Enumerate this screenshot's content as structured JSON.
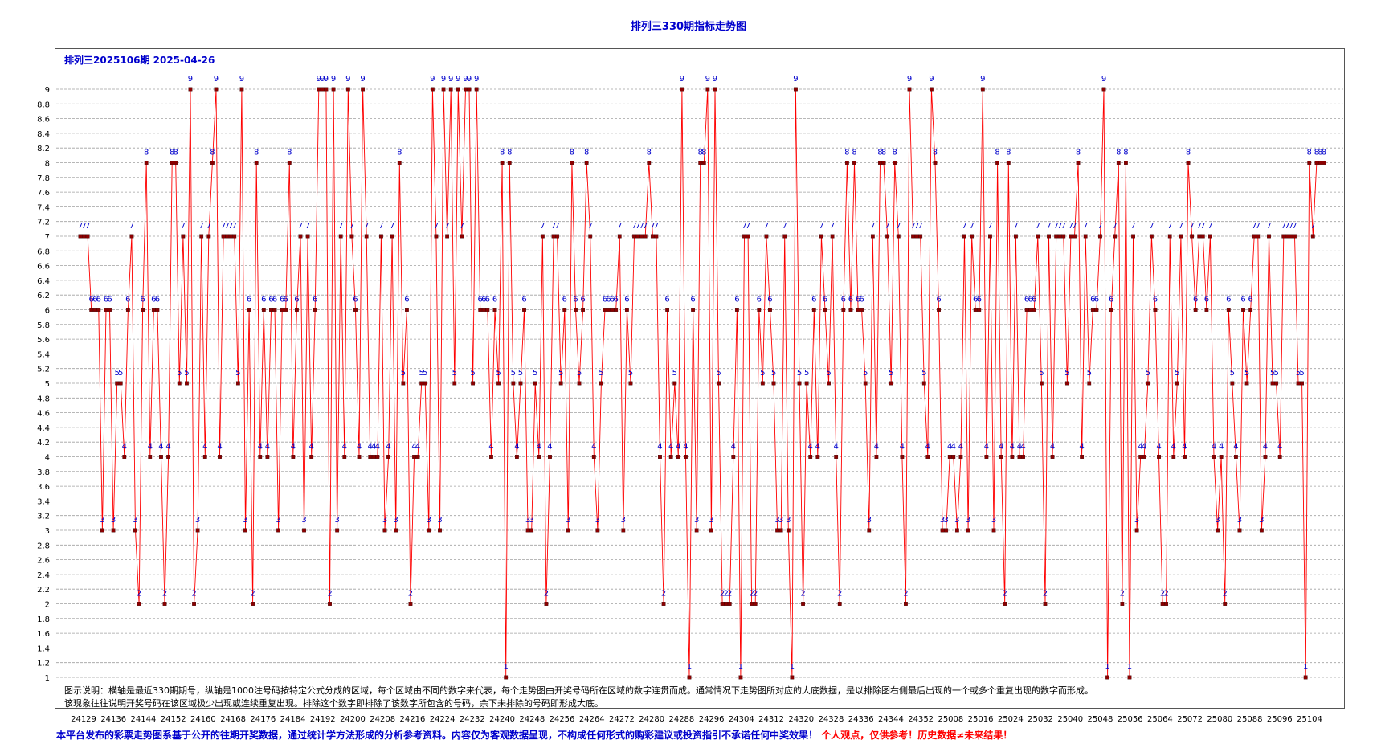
{
  "page": {
    "title": "排列三330期指标走势图",
    "issue_label": "排列三2025106期  2025-04-26",
    "explain_line1": "图示说明：横轴是最近330期期号，纵轴是1000注号码按特定公式分成的区域，每个区域由不同的数字来代表，每个走势图由开奖号码所在区域的数字连贯而成。通常情况下走势图所对应的大底数据，是以排除图右侧最后出现的一个或多个重复出现的数字而形成。",
    "explain_line2": "该现象往往说明开奖号码在该区域极少出现或连续重复出现。排除这个数字即排除了该数字所包含的号码，余下未排除的号码即形成大底。",
    "disclaimer_blue": "本平台发布的彩票走势图系基于公开的往期开奖数据，通过统计学方法形成的分析参考资料。内容仅为客观数据呈现，不构成任何形式的购彩建议或投资指引不承诺任何中奖效果！",
    "disclaimer_red": "个人观点，仅供参考！历史数据≠未来结果！",
    "colors": {
      "line": "#ff0000",
      "marker": "#8b0000",
      "label": "#0000cc",
      "grid": "#a0a0a0"
    }
  },
  "chart_data": {
    "type": "line",
    "title": "排列三330期指标走势图",
    "xlabel": "",
    "ylabel": "",
    "ylim": [
      1,
      9
    ],
    "grid": true,
    "y_ticks": [
      "1",
      "1.2",
      "1.4",
      "1.6",
      "1.8",
      "2",
      "2.2",
      "2.4",
      "2.6",
      "2.8",
      "3",
      "3.2",
      "3.4",
      "3.6",
      "3.8",
      "4",
      "4.2",
      "4.4",
      "4.6",
      "4.8",
      "5",
      "5.2",
      "5.4",
      "5.6",
      "5.8",
      "6",
      "6.2",
      "6.4",
      "6.6",
      "6.8",
      "7",
      "7.2",
      "7.4",
      "7.6",
      "7.8",
      "8",
      "8.2",
      "8.4",
      "8.6",
      "8.8",
      "9"
    ],
    "x_tick_labels": [
      "24129",
      "24136",
      "24144",
      "24152",
      "24160",
      "24168",
      "24176",
      "24184",
      "24192",
      "24200",
      "24208",
      "24216",
      "24224",
      "24232",
      "24240",
      "24248",
      "24256",
      "24264",
      "24272",
      "24280",
      "24288",
      "24296",
      "24304",
      "24312",
      "24320",
      "24328",
      "24336",
      "24344",
      "24352",
      "25008",
      "25016",
      "25024",
      "25032",
      "25040",
      "25048",
      "25056",
      "25064",
      "25072",
      "25080",
      "25088",
      "25096",
      "25104"
    ],
    "values": [
      7,
      7,
      7,
      6,
      6,
      6,
      3,
      6,
      6,
      3,
      5,
      5,
      4,
      6,
      7,
      3,
      2,
      6,
      8,
      4,
      6,
      6,
      4,
      2,
      4,
      8,
      8,
      5,
      7,
      5,
      9,
      2,
      3,
      7,
      4,
      7,
      8,
      9,
      4,
      7,
      7,
      7,
      7,
      5,
      9,
      3,
      6,
      2,
      8,
      4,
      6,
      4,
      6,
      6,
      3,
      6,
      6,
      8,
      4,
      6,
      7,
      3,
      7,
      4,
      6,
      9,
      9,
      9,
      2,
      9,
      3,
      7,
      4,
      9,
      7,
      6,
      4,
      9,
      7,
      4,
      4,
      4,
      7,
      3,
      4,
      7,
      3,
      8,
      5,
      6,
      2,
      4,
      4,
      5,
      5,
      3,
      9,
      7,
      3,
      9,
      7,
      9,
      5,
      9,
      7,
      9,
      9,
      5,
      9,
      6,
      6,
      6,
      4,
      6,
      5,
      8,
      1,
      8,
      5,
      4,
      5,
      6,
      3,
      3,
      5,
      4,
      7,
      2,
      4,
      7,
      7,
      5,
      6,
      3,
      8,
      6,
      5,
      6,
      8,
      7,
      4,
      3,
      5,
      6,
      6,
      6,
      6,
      7,
      3,
      6,
      5,
      7,
      7,
      7,
      7,
      8,
      7,
      7,
      4,
      2,
      6,
      4,
      5,
      4,
      9,
      4,
      1,
      6,
      3,
      8,
      8,
      9,
      3,
      9,
      5,
      2,
      2,
      2,
      4,
      6,
      1,
      7,
      7,
      2,
      2,
      6,
      5,
      7,
      6,
      5,
      3,
      3,
      7,
      3,
      1,
      9,
      5,
      2,
      5,
      4,
      6,
      4,
      7,
      6,
      5,
      7,
      4,
      2,
      6,
      8,
      6,
      8,
      6,
      6,
      5,
      3,
      7,
      4,
      8,
      8,
      7,
      5,
      8,
      7,
      4,
      2,
      9,
      7,
      7,
      7,
      5,
      4,
      9,
      8,
      6,
      3,
      3,
      4,
      4,
      3,
      4,
      7,
      3,
      7,
      6,
      6,
      9,
      4,
      7,
      3,
      8,
      4,
      2,
      8,
      4,
      7,
      4,
      4,
      6,
      6,
      6,
      7,
      5,
      2,
      7,
      4,
      7,
      7,
      7,
      5,
      7,
      7,
      8,
      4,
      7,
      5,
      6,
      6,
      7,
      9,
      1,
      6,
      7,
      8,
      2,
      8,
      1,
      7,
      3,
      4,
      4,
      5,
      7,
      6,
      4,
      2,
      2,
      7,
      4,
      5,
      7,
      4,
      8,
      7,
      6,
      7,
      7,
      6,
      7,
      4,
      3,
      4,
      2,
      6,
      5,
      4,
      3,
      6,
      5,
      6,
      7,
      7,
      3,
      4,
      7,
      5,
      5,
      4,
      7,
      7,
      7,
      7,
      5,
      5,
      1,
      8,
      7,
      8,
      8,
      8
    ]
  }
}
